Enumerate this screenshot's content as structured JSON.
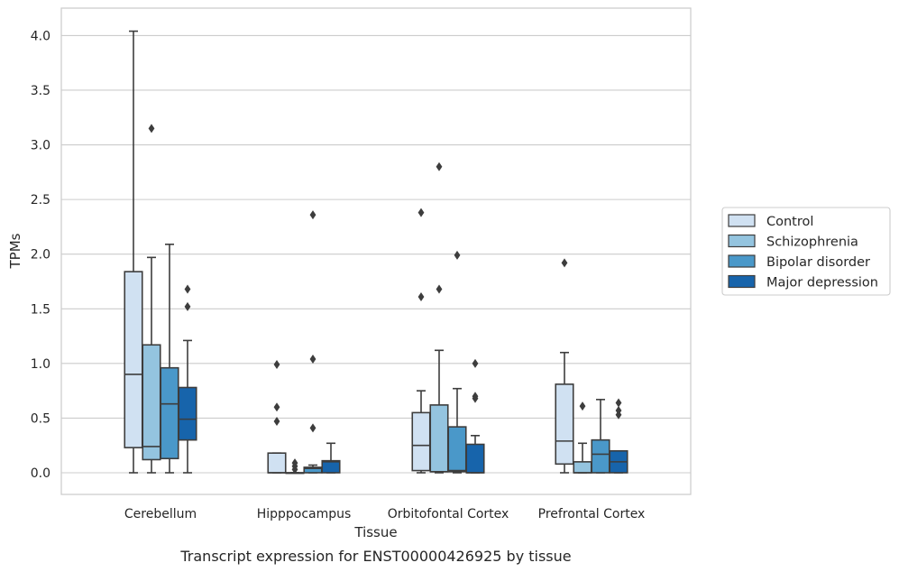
{
  "chart_data": {
    "type": "box",
    "xlabel": "Tissue",
    "ylabel": "TPMs",
    "caption": "Transcript expression for ENST00000426925 by tissue",
    "ylim": [
      -0.2,
      4.25
    ],
    "yticks": [
      "0.0",
      "0.5",
      "1.0",
      "1.5",
      "2.0",
      "2.5",
      "3.0",
      "3.5",
      "4.0"
    ],
    "grid": true,
    "legend_position": "right",
    "categories": [
      "Cerebellum",
      "Hipppocampus",
      "Orbitofontal Cortex",
      "Prefrontal Cortex"
    ],
    "series": [
      {
        "name": "Control",
        "color": "#d0e1f2",
        "boxes": [
          {
            "whislo": 0.0,
            "q1": 0.23,
            "med": 0.9,
            "q3": 1.84,
            "whishi": 4.04,
            "fliers": []
          },
          {
            "whislo": 0.0,
            "q1": 0.0,
            "med": 0.0,
            "q3": 0.18,
            "whishi": 0.18,
            "fliers": [
              0.47,
              0.6,
              0.99
            ]
          },
          {
            "whislo": 0.0,
            "q1": 0.02,
            "med": 0.25,
            "q3": 0.55,
            "whishi": 0.75,
            "fliers": [
              1.61,
              2.38
            ]
          },
          {
            "whislo": 0.0,
            "q1": 0.08,
            "med": 0.29,
            "q3": 0.81,
            "whishi": 1.1,
            "fliers": [
              1.92
            ]
          }
        ]
      },
      {
        "name": "Schizophrenia",
        "color": "#94c4df",
        "boxes": [
          {
            "whislo": 0.0,
            "q1": 0.12,
            "med": 0.24,
            "q3": 1.17,
            "whishi": 1.97,
            "fliers": [
              3.15
            ]
          },
          {
            "whislo": 0.0,
            "q1": 0.0,
            "med": 0.0,
            "q3": 0.0,
            "whishi": 0.0,
            "fliers": [
              0.03,
              0.06,
              0.09
            ]
          },
          {
            "whislo": 0.0,
            "q1": 0.01,
            "med": 0.01,
            "q3": 0.62,
            "whishi": 1.12,
            "fliers": [
              1.68,
              2.8
            ]
          },
          {
            "whislo": 0.0,
            "q1": 0.0,
            "med": 0.0,
            "q3": 0.1,
            "whishi": 0.27,
            "fliers": [
              0.61
            ]
          }
        ]
      },
      {
        "name": "Bipolar disorder",
        "color": "#4a98c9",
        "boxes": [
          {
            "whislo": 0.0,
            "q1": 0.13,
            "med": 0.63,
            "q3": 0.96,
            "whishi": 2.09,
            "fliers": []
          },
          {
            "whislo": 0.0,
            "q1": 0.0,
            "med": 0.04,
            "q3": 0.05,
            "whishi": 0.07,
            "fliers": [
              0.41,
              1.04,
              2.36
            ]
          },
          {
            "whislo": 0.0,
            "q1": 0.01,
            "med": 0.02,
            "q3": 0.42,
            "whishi": 0.77,
            "fliers": [
              1.99
            ]
          },
          {
            "whislo": 0.0,
            "q1": 0.0,
            "med": 0.17,
            "q3": 0.3,
            "whishi": 0.67,
            "fliers": []
          }
        ]
      },
      {
        "name": "Major depression",
        "color": "#1764ab",
        "boxes": [
          {
            "whislo": 0.0,
            "q1": 0.3,
            "med": 0.49,
            "q3": 0.78,
            "whishi": 1.21,
            "fliers": [
              1.52,
              1.68
            ]
          },
          {
            "whislo": 0.0,
            "q1": 0.0,
            "med": 0.1,
            "q3": 0.11,
            "whishi": 0.27,
            "fliers": []
          },
          {
            "whislo": 0.0,
            "q1": 0.0,
            "med": 0.0,
            "q3": 0.26,
            "whishi": 0.34,
            "fliers": [
              0.68,
              0.7,
              1.0
            ]
          },
          {
            "whislo": 0.0,
            "q1": 0.0,
            "med": 0.1,
            "q3": 0.2,
            "whishi": 0.2,
            "fliers": [
              0.53,
              0.57,
              0.64
            ]
          }
        ]
      }
    ]
  }
}
